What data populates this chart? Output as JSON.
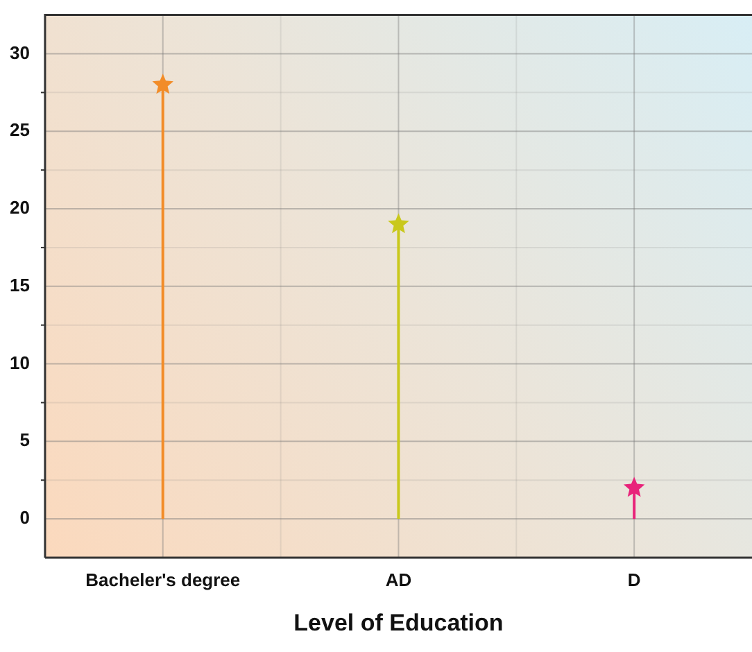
{
  "chart_data": {
    "type": "lollipop",
    "xlabel": "Level of Education",
    "categories": [
      "Bacheler's degree",
      "AD",
      "D"
    ],
    "values": [
      28,
      19,
      2
    ],
    "colors": [
      "#f28c28",
      "#c9c81c",
      "#e8237a"
    ],
    "ylim": [
      -2.5,
      32.5
    ],
    "yticks": [
      0,
      5,
      10,
      15,
      20,
      25,
      30
    ],
    "grid": true,
    "marker": "star",
    "legend": false
  }
}
